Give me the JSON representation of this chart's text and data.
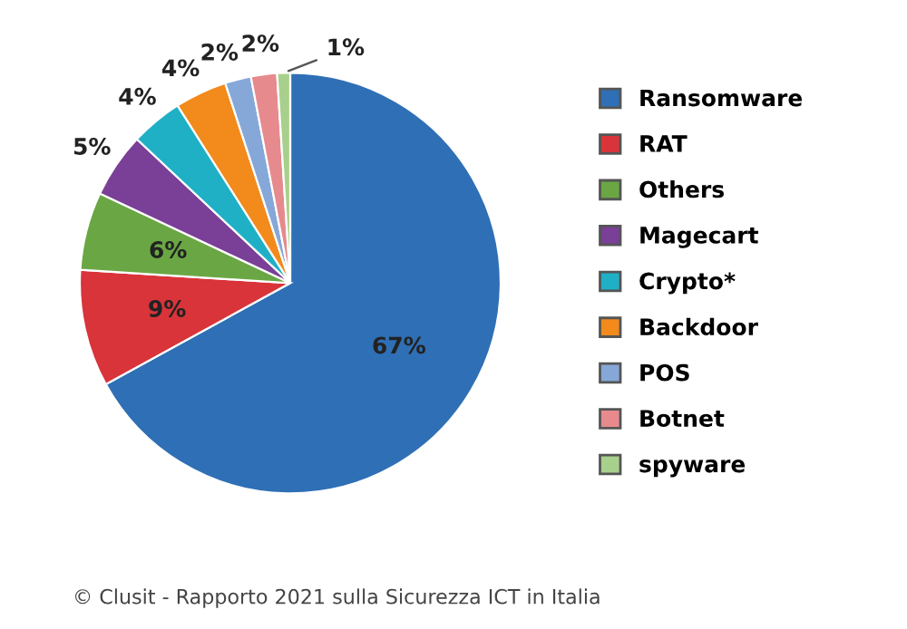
{
  "chart_data": {
    "type": "pie",
    "categories": [
      "Ransomware",
      "RAT",
      "Others",
      "Magecart",
      "Crypto*",
      "Backdoor",
      "POS",
      "Botnet",
      "spyware"
    ],
    "values": [
      67,
      9,
      6,
      5,
      4,
      4,
      2,
      2,
      1
    ],
    "value_labels": [
      "67%",
      "9%",
      "6%",
      "5%",
      "4%",
      "4%",
      "2%",
      "2%",
      "1%"
    ],
    "colors": [
      "#2f6fb5",
      "#d8343a",
      "#6aa744",
      "#7a3f96",
      "#1fb0c6",
      "#f28a1c",
      "#86a8d8",
      "#e68a8e",
      "#a8d08d"
    ],
    "legend": "right",
    "annotations": [
      "© Clusit - Rapporto 2021 sulla Sicurezza ICT in Italia"
    ]
  }
}
